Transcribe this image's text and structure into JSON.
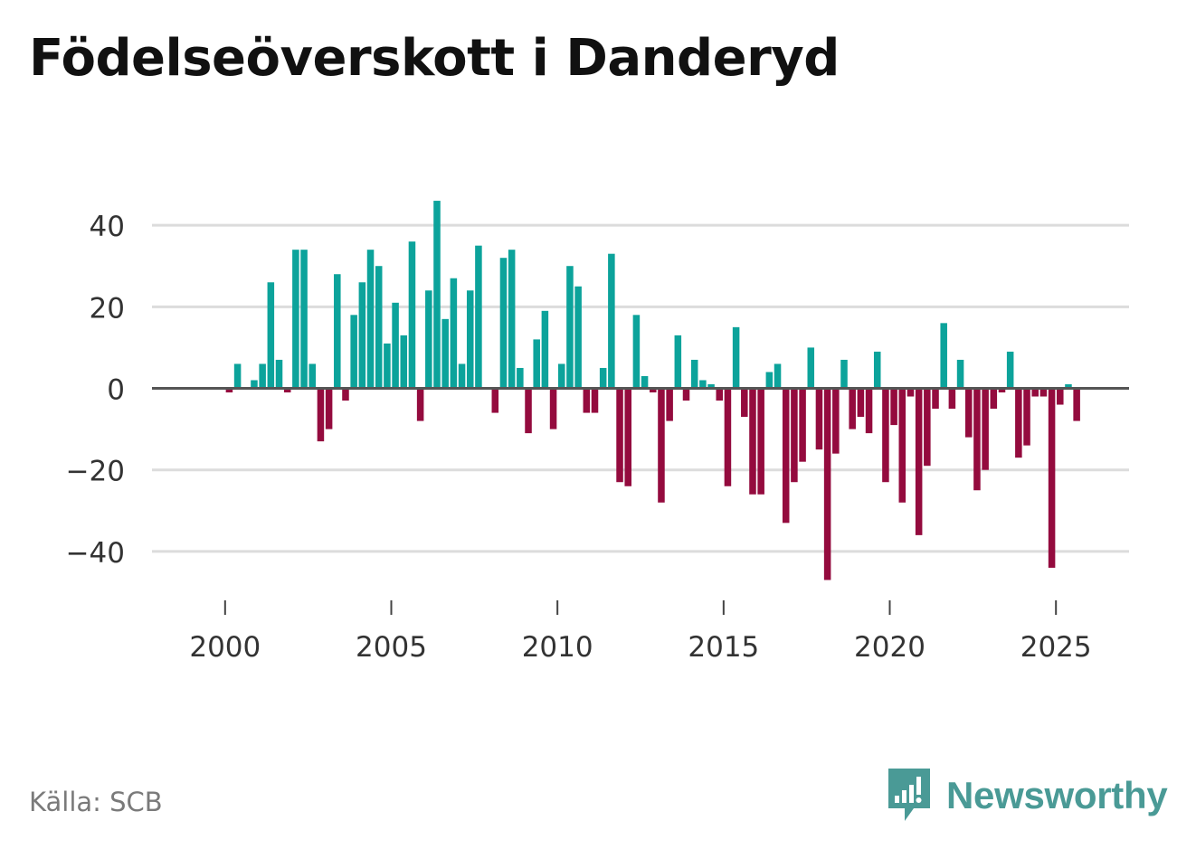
{
  "colors": {
    "positive": "#0ca39b",
    "negative": "#940b3e",
    "grid": "#dcdcdc",
    "zero_line": "#555555",
    "brand": "#4a9a96"
  },
  "source": "Källa: SCB",
  "brand": {
    "name": "Newsworthy",
    "icon": "newsworthy-logo-icon"
  },
  "chart_data": {
    "type": "bar",
    "title": "Födelseöverskott i Danderyd",
    "xlabel": "",
    "ylabel": "",
    "ylim": [
      -50,
      52
    ],
    "xlim": [
      1997.8,
      2027.2
    ],
    "xticks": [
      2000,
      2005,
      2010,
      2015,
      2020,
      2025
    ],
    "yticks": [
      -40,
      -20,
      0,
      20,
      40
    ],
    "ytick_labels": [
      "−40",
      "−20",
      "0",
      "20",
      "40"
    ],
    "grid": true,
    "x_start": 2000.125,
    "x_step": 0.25,
    "values": [
      -1,
      6,
      0,
      2,
      6,
      26,
      7,
      -1,
      34,
      34,
      6,
      -13,
      -10,
      28,
      -3,
      18,
      26,
      34,
      30,
      11,
      21,
      13,
      36,
      -8,
      24,
      46,
      17,
      27,
      6,
      24,
      35,
      0,
      -6,
      32,
      34,
      5,
      -11,
      12,
      19,
      -10,
      6,
      30,
      25,
      -6,
      -6,
      5,
      33,
      -23,
      -24,
      18,
      3,
      -1,
      -28,
      -8,
      13,
      -3,
      7,
      2,
      1,
      -3,
      -24,
      15,
      -7,
      -26,
      -26,
      4,
      6,
      -33,
      -23,
      -18,
      10,
      -15,
      -47,
      -16,
      7,
      -10,
      -7,
      -11,
      9,
      -23,
      -9,
      -28,
      -2,
      -36,
      -19,
      -5,
      16,
      -5,
      7,
      -12,
      -25,
      -20,
      -5,
      -1,
      9,
      -17,
      -14,
      -2,
      -2,
      -44,
      -4,
      1,
      -8
    ]
  }
}
